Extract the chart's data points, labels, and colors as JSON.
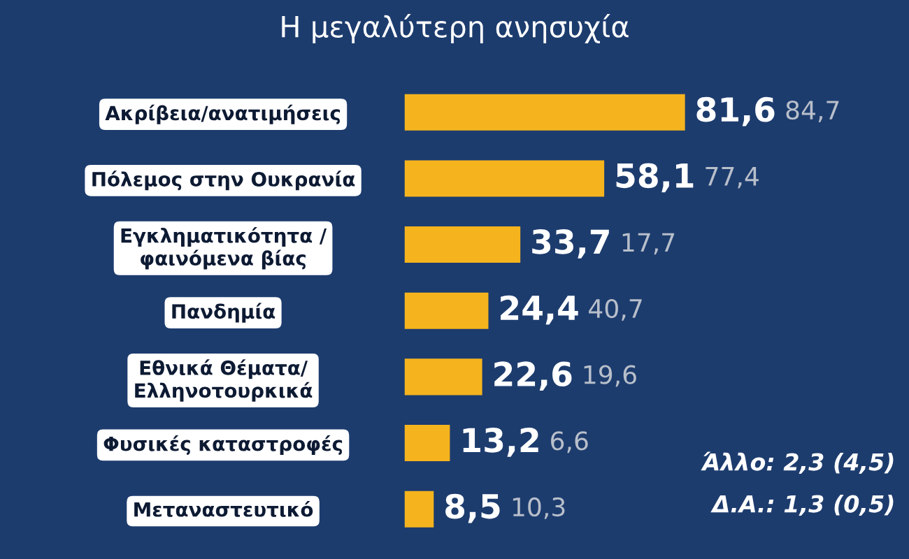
{
  "chart_data": {
    "type": "bar",
    "orientation": "horizontal",
    "title": "Η μεγαλύτερη ανησυχία",
    "categories": [
      "Ακρίβεια/ανατιμήσεις",
      "Πόλεμος στην Ουκρανία",
      "Εγκληματικότητα /\nφαινόμενα βίας",
      "Πανδημία",
      "Εθνικά Θέματα/\nΕλληνοτουρκικά",
      "Φυσικές καταστροφές",
      "Μεταναστευτικό"
    ],
    "values": [
      81.6,
      58.1,
      33.7,
      24.4,
      22.6,
      13.2,
      8.5
    ],
    "value_labels": [
      "81,6",
      "58,1",
      "33,7",
      "24,4",
      "22,6",
      "13,2",
      "8,5"
    ],
    "color": "#f5b41e",
    "tick_labels": "y",
    "grid": false,
    "legend": false,
    "annotations": [
      "84,7",
      "77,4",
      "17,7",
      "40,7",
      "19,6",
      "6,6",
      "10,3",
      "Άλλο: 2,3 (4,5)",
      "Δ.Α.: 1,3 (0,5)"
    ]
  }
}
